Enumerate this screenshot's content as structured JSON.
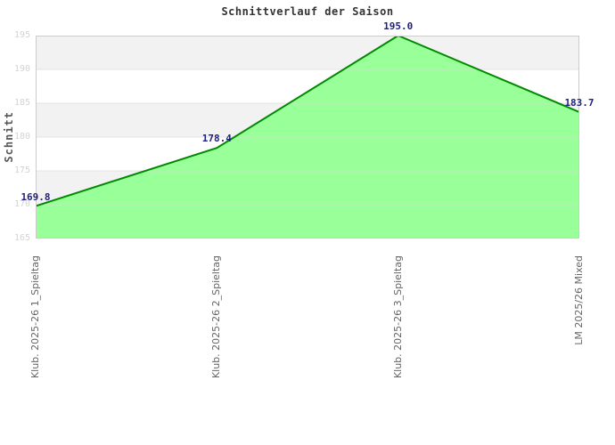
{
  "chart_data": {
    "type": "area",
    "title": "Schnittverlauf der Saison",
    "xlabel": "",
    "ylabel": "Schnitt",
    "categories": [
      "Klub. 2025-26  1_Spieltag",
      "Klub. 2025-26  2_Spieltag",
      "Klub. 2025-26  3_Spieltag",
      "LM 2025/26 Mixed"
    ],
    "values": [
      169.8,
      178.4,
      195.0,
      183.7
    ],
    "point_labels": [
      "169.8",
      "178.4",
      "195.0",
      "183.7"
    ],
    "ylim": [
      165,
      195
    ],
    "yticks": [
      195,
      190,
      185,
      180,
      175,
      170,
      165
    ],
    "grid": "horizontal-bands",
    "legend": "none",
    "colors": {
      "area_fill": "#99FF99",
      "series_line": "#008A00",
      "point_label": "#202080",
      "band": "#F2F2F2",
      "band_alt": "#FFFFFF",
      "gridline": "#D8D8D8",
      "tick_text": "#D4D4D4",
      "category_text": "#666666",
      "axis_title_text": "#555555",
      "title_text": "#333333",
      "plot_border": "#CCCCCC"
    }
  }
}
